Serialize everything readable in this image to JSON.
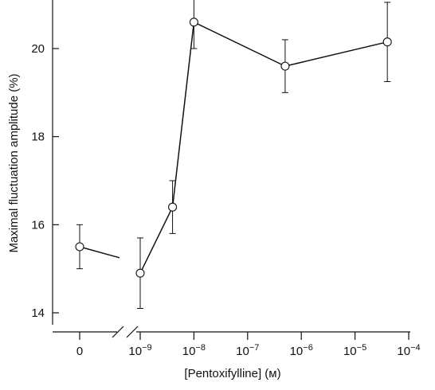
{
  "chart_data": {
    "type": "line",
    "title": "",
    "xlabel": "[Pentoxifylline] (м)",
    "ylabel": "Maximal fluctuation amplitude (%)",
    "x_scale": "log, with broken axis for zero",
    "x_ticks": [
      {
        "value": 0,
        "base": "0",
        "exp": ""
      },
      {
        "value": 1e-09,
        "base": "10",
        "exp": "−9"
      },
      {
        "value": 1e-08,
        "base": "10",
        "exp": "−8"
      },
      {
        "value": 1e-07,
        "base": "10",
        "exp": "−7"
      },
      {
        "value": 1e-06,
        "base": "10",
        "exp": "−6"
      },
      {
        "value": 1e-05,
        "base": "10",
        "exp": "−5"
      },
      {
        "value": 0.0001,
        "base": "10",
        "exp": "−4"
      }
    ],
    "y_ticks": [
      "14",
      "16",
      "18",
      "20"
    ],
    "ylim": [
      13.7,
      21.1
    ],
    "xlim_log": [
      -10.7,
      -4
    ],
    "points": [
      {
        "x": 0,
        "y": 15.5,
        "err": 0.5
      },
      {
        "x": 1e-09,
        "y": 14.9,
        "err": 0.8
      },
      {
        "x": 4e-09,
        "y": 16.4,
        "err": 0.6
      },
      {
        "x": 1e-08,
        "y": 20.6,
        "err": 0.6
      },
      {
        "x": 5e-07,
        "y": 19.6,
        "err": 0.6
      },
      {
        "x": 4e-05,
        "y": 20.15,
        "err": 0.9
      }
    ],
    "zero_segment_end_y": 15.25
  }
}
